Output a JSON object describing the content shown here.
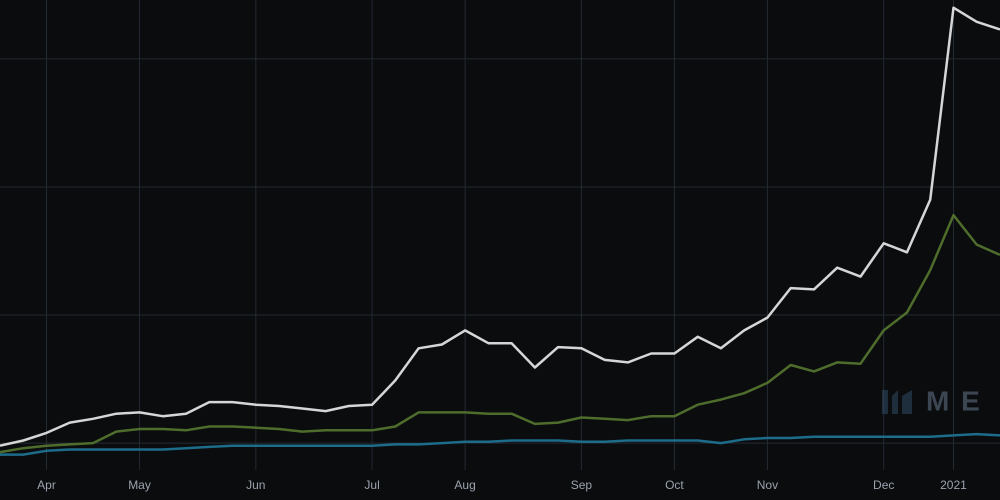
{
  "chart_data": {
    "type": "line",
    "categories": [
      null,
      null,
      "Apr",
      null,
      null,
      null,
      "May",
      null,
      null,
      null,
      null,
      "Jun",
      null,
      null,
      null,
      null,
      "Jul",
      null,
      null,
      null,
      "Aug",
      null,
      null,
      null,
      null,
      "Sep",
      null,
      null,
      null,
      "Oct",
      null,
      null,
      null,
      "Nov",
      null,
      null,
      null,
      null,
      "Dec",
      null,
      null,
      "2021",
      null,
      null
    ],
    "series": [
      {
        "color": "#d6d6d6",
        "values": [
          9.8,
          10.2,
          10.8,
          11.6,
          11.9,
          12.3,
          12.4,
          12.1,
          12.3,
          13.2,
          13.2,
          13.0,
          12.9,
          12.7,
          12.5,
          12.9,
          13.0,
          14.9,
          17.4,
          17.7,
          18.8,
          17.8,
          17.8,
          15.9,
          17.5,
          17.4,
          16.5,
          16.3,
          17.0,
          17.0,
          18.3,
          17.4,
          18.8,
          19.8,
          22.1,
          22.0,
          23.7,
          23.0,
          25.6,
          24.9,
          29.0,
          44.0,
          42.9,
          42.3
        ]
      },
      {
        "color": "#4e6d2c",
        "values": [
          9.3,
          9.6,
          9.8,
          9.9,
          10.0,
          10.9,
          11.1,
          11.1,
          11.0,
          11.3,
          11.3,
          11.2,
          11.1,
          10.9,
          11.0,
          11.0,
          11.0,
          11.3,
          12.4,
          12.4,
          12.4,
          12.3,
          12.3,
          11.5,
          11.6,
          12.0,
          11.9,
          11.8,
          12.1,
          12.1,
          13.0,
          13.4,
          13.9,
          14.7,
          16.1,
          15.6,
          16.3,
          16.2,
          18.8,
          20.2,
          23.5,
          27.8,
          25.5,
          24.7
        ]
      },
      {
        "color": "#1d6c8a",
        "values": [
          9.1,
          9.1,
          9.4,
          9.5,
          9.5,
          9.5,
          9.5,
          9.5,
          9.6,
          9.7,
          9.8,
          9.8,
          9.8,
          9.8,
          9.8,
          9.8,
          9.8,
          9.9,
          9.9,
          10.0,
          10.1,
          10.1,
          10.2,
          10.2,
          10.2,
          10.1,
          10.1,
          10.2,
          10.2,
          10.2,
          10.2,
          10.0,
          10.3,
          10.4,
          10.4,
          10.5,
          10.5,
          10.5,
          10.5,
          10.5,
          10.5,
          10.6,
          10.7,
          10.6
        ]
      }
    ],
    "ylim": [
      7.9,
      44.6
    ],
    "yticks": [
      10,
      20,
      30,
      40
    ],
    "grid": true,
    "watermark": "M E"
  }
}
